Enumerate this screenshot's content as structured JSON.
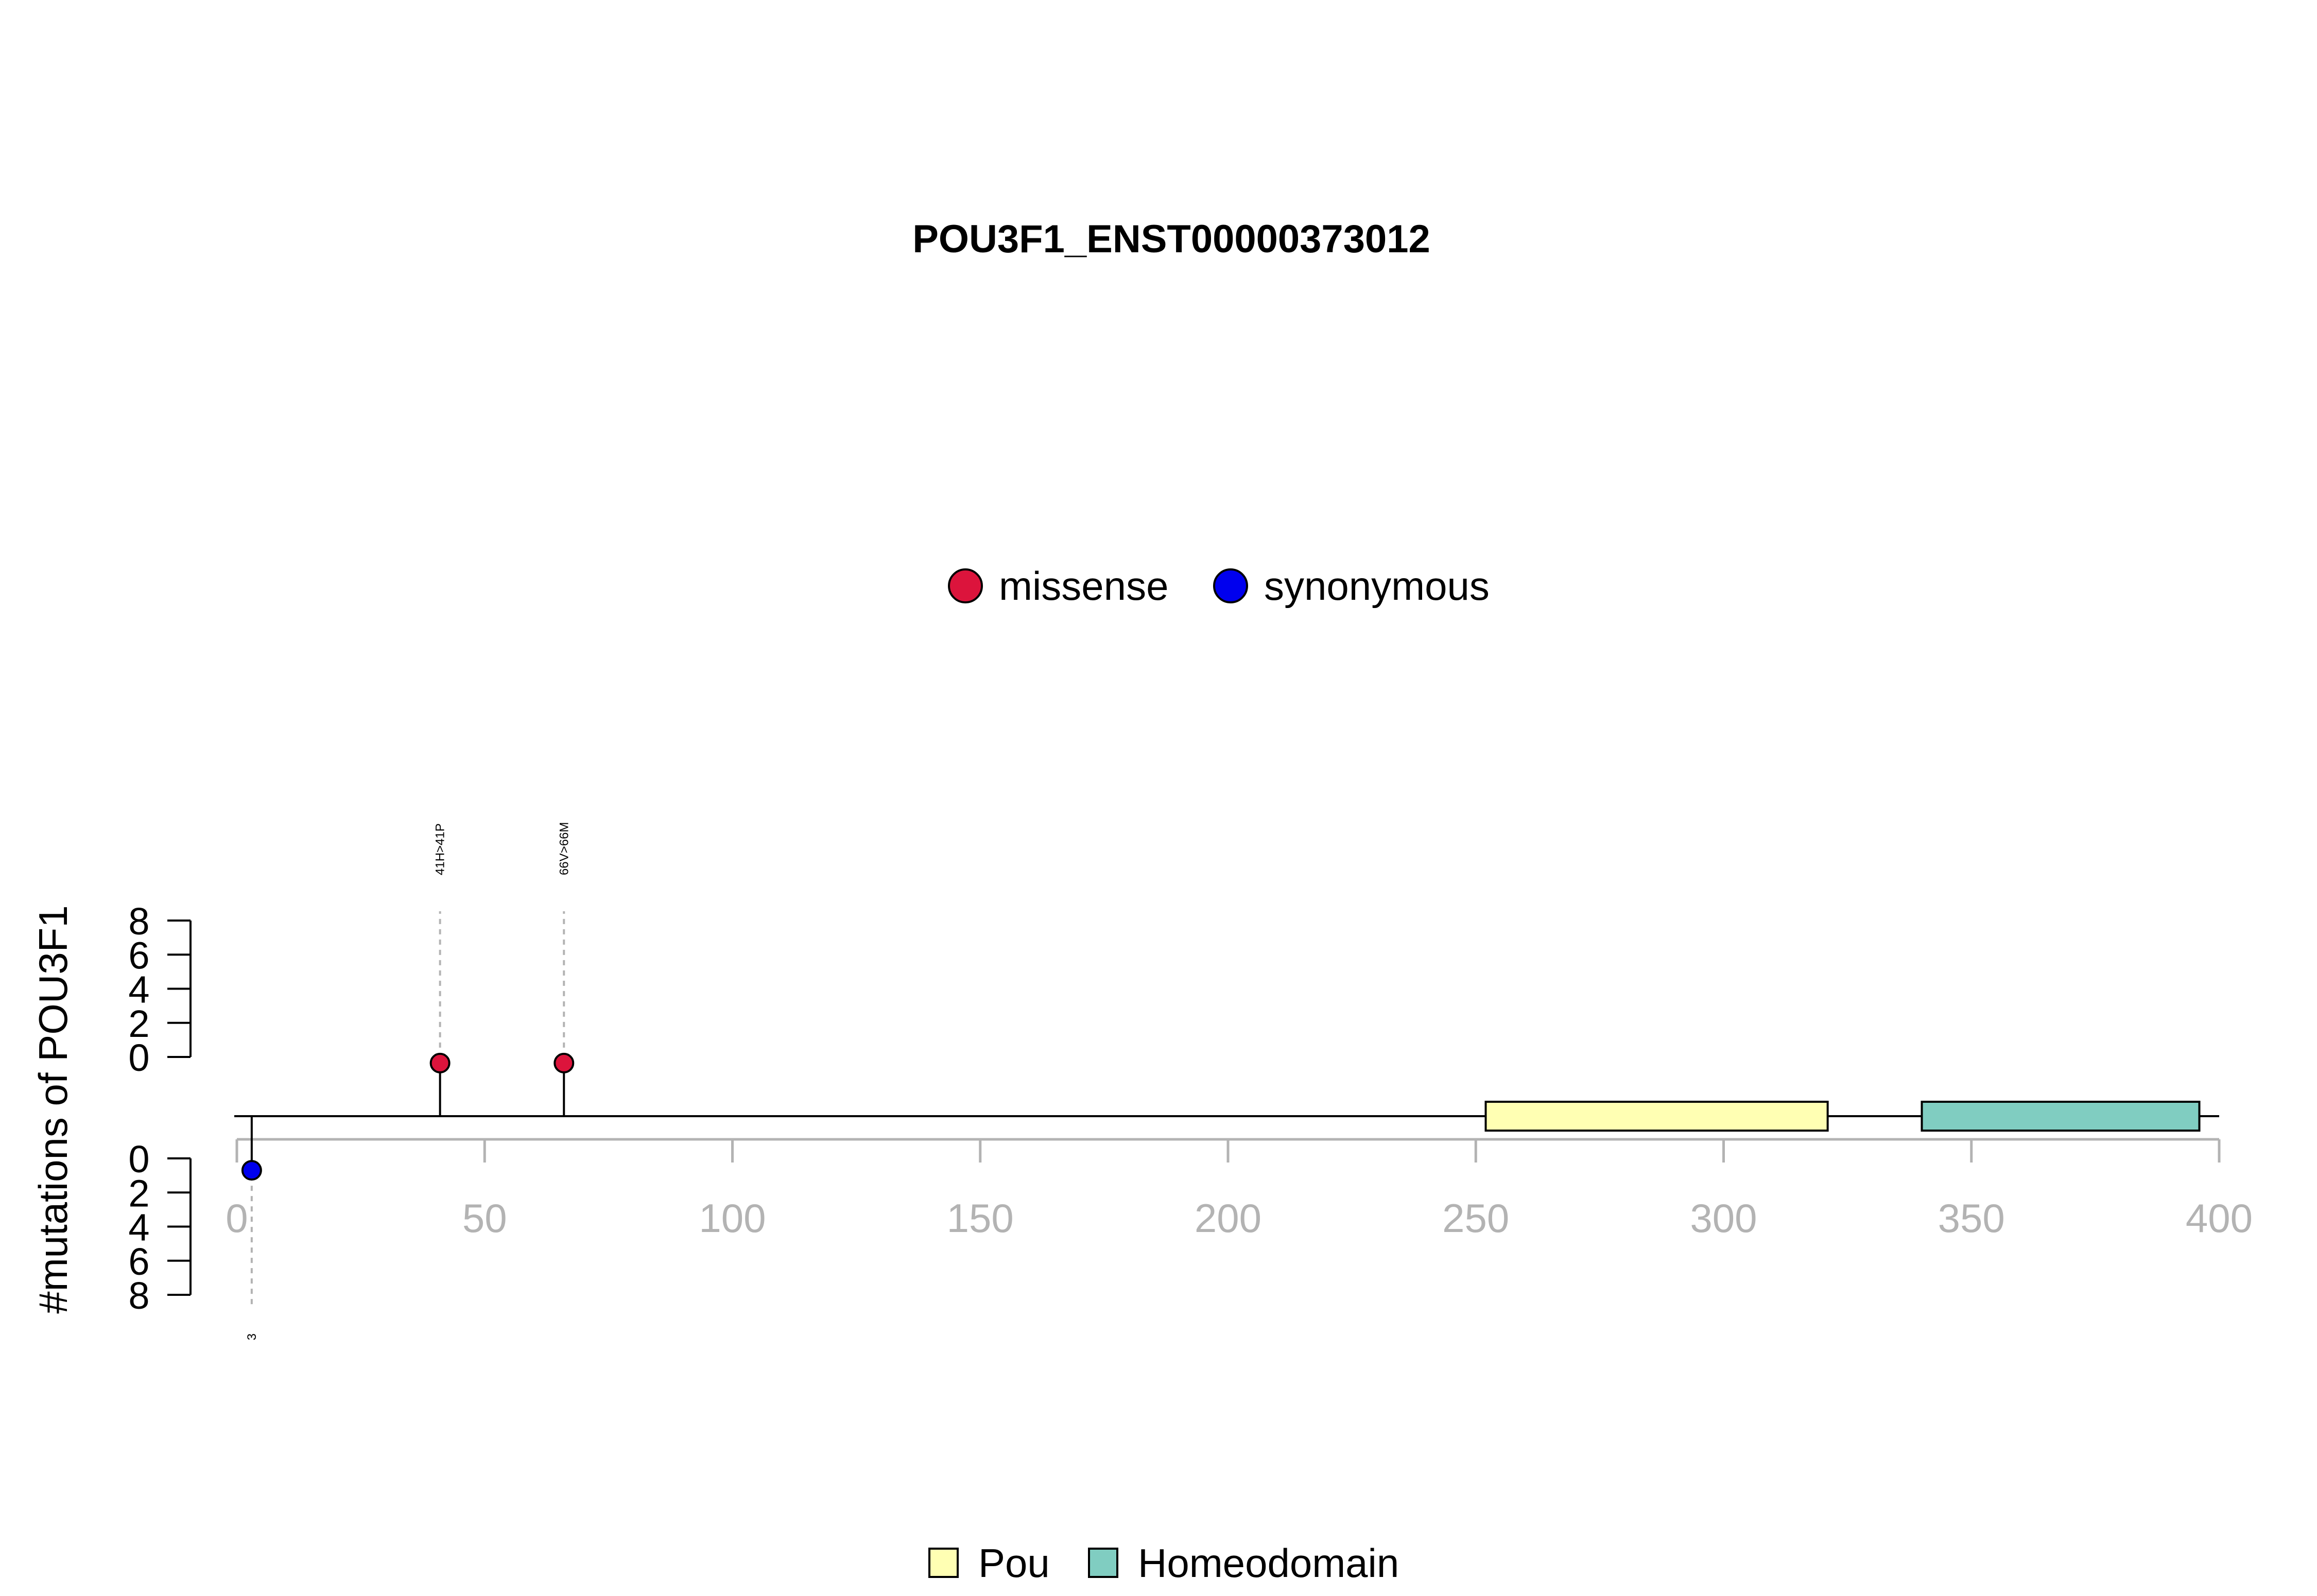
{
  "chart_data": {
    "type": "lollipop",
    "title": "POU3F1_ENST00000373012",
    "ylabel": "#mutations of POU3F1",
    "xlim": [
      0,
      400
    ],
    "x_ticks": [
      0,
      50,
      100,
      150,
      200,
      250,
      300,
      350,
      400
    ],
    "y_ticks": [
      0,
      2,
      4,
      6,
      8
    ],
    "y_range_top": [
      0,
      8
    ],
    "y_range_bottom": [
      0,
      8
    ],
    "protein_length": 400,
    "mutation_legend": [
      {
        "label": "missense",
        "color": "#DC143C"
      },
      {
        "label": "synonymous",
        "color": "#0000EE"
      }
    ],
    "mutations": [
      {
        "position": 41,
        "count": 1,
        "type": "missense",
        "label": "41H>41P",
        "side": "top"
      },
      {
        "position": 66,
        "count": 1,
        "type": "missense",
        "label": "66V>66M",
        "side": "top"
      },
      {
        "position": 3,
        "count": 1,
        "type": "synonymous",
        "label": "3",
        "side": "bottom"
      }
    ],
    "domain_legend": [
      {
        "label": "Pou",
        "color": "#FFFFB3"
      },
      {
        "label": "Homeodomain",
        "color": "#80CDC1"
      }
    ],
    "domains": [
      {
        "name": "Pou",
        "start": 252,
        "end": 321,
        "color": "#FFFFB3"
      },
      {
        "name": "Homeodomain",
        "start": 340,
        "end": 396,
        "color": "#80CDC1"
      }
    ]
  }
}
